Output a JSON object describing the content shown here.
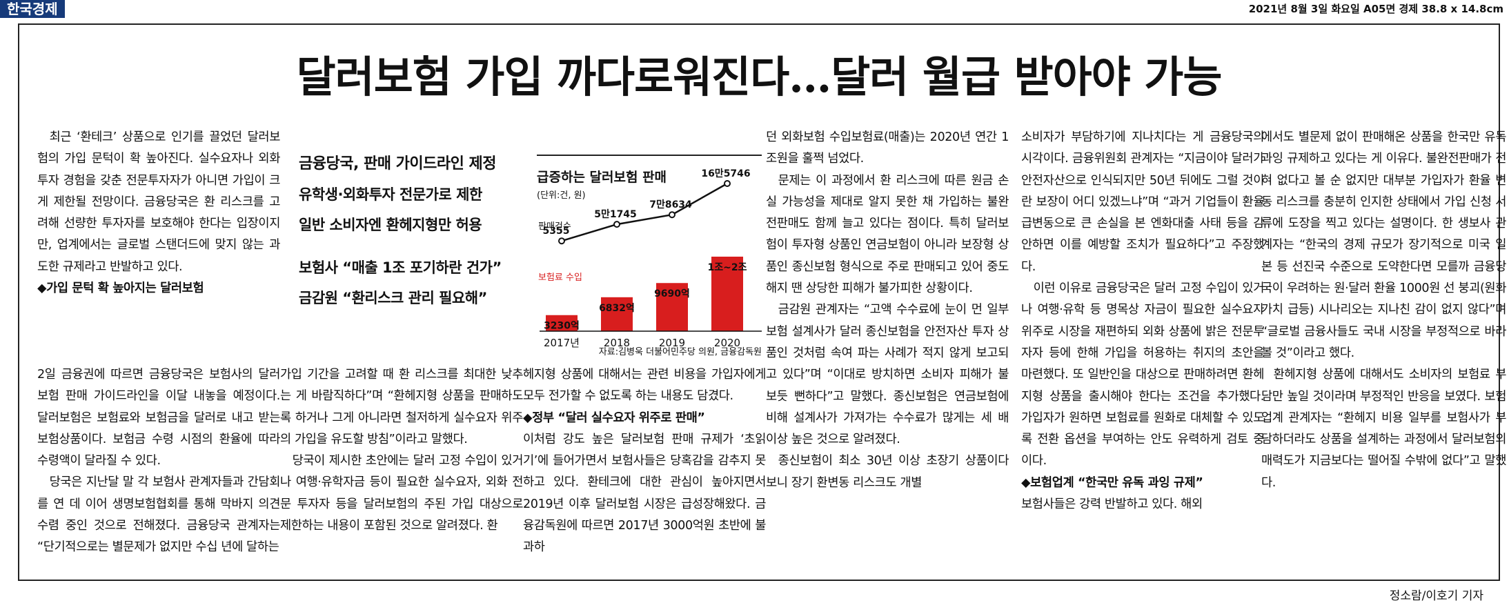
{
  "masthead": {
    "name": "한국경제",
    "dateline": "2021년 8월 3일 화요일 A05면 경제 38.8 x 14.8cm"
  },
  "headline": "달러보험 가입 까다로워진다…달러 월급 받아야 가능",
  "deck": {
    "line1": "금융당국, 판매 가이드라인 제정",
    "line2": "유학생·외화투자 전문가로 제한",
    "line3": "일반 소비자엔 환헤지형만 허용",
    "line4": "보험사 “매출 1조 포기하란 건가”",
    "line5": "금감원 “환리스크 관리 필요해”"
  },
  "article": {
    "col1": [
      "최근 ‘환테크’ 상품으로 인기를 끌었던 달러보험의 가입 문턱이 확 높아진다. 실수요자나 외화 투자 경험을 갖춘 전문투자자가 아니면 가입이 크게 제한될 전망이다. 금융당국은 환 리스크를 고려해 선량한 투자자를 보호해야 한다는 입장이지만, 업계에서는 글로벌 스탠더드에 맞지 않는 과도한 규제라고 반발하고 있다."
    ],
    "sub1": "◆가입 문턱 확 높아지는 달러보험",
    "col1b": [
      "2일 금융권에 따르면 금융당국은 보험사의 달러보험 판매 가이드라인을 이달 내놓을 예정이다. 달러보험은 보험료와 보험금을 달러로 내고 받는 보험상품이다. 보험금 수령 시점의 환율에 따라 수령액이 달라질 수 있다.",
      "당국은 지난달 말 각 보험사 관계자들과 간담회를 연 데 이어 생명보험협회를 통해 막바지 의견 수렴 중인 것으로 전해졌다. 금융당국 관계자는 “단기적으로는 별문제가 없지만 수십 년에 달하는"
    ],
    "col3": [
      "가입 기간을 고려할 때 환 리스크를 최대한 낮추는 게 바람직하다”며 “환헤지형 상품을 판매하도록 하거나 그게 아니라면 철저하게 실수요자 위주의 가입을 유도할 방침”이라고 말했다.",
      "당국이 제시한 초안에는 달러 고정 수입이 있거나 여행·유학자금 등이 필요한 실수요자, 외화 전문 투자자 등을 달러보험의 주된 가입 대상으로 제한하는 내용이 포함된 것으로 알려졌다. 환"
    ],
    "col4a": "헤지형 상품에 대해서는 관련 비용을 가입자에게 모두 전가할 수 없도록 하는 내용도 담겼다.",
    "sub2": "◆정부 “달러 실수요자 위주로 판매”",
    "col4b": "이처럼 강도 높은 달러보험 판매 규제가 ‘초읽기’에 들어가면서 보험사들은 당혹감을 감추지 못하고 있다. 환테크에 대한 관심이 높아지면서 2019년 이후 달러보험 시장은 급성장해왔다. 금융감독원에 따르면 2017년 3000억원 초반에 불과하",
    "col5": [
      "던 외화보험 수입보험료(매출)는 2020년 연간 1조원을 훌쩍 넘었다.",
      "문제는 이 과정에서 환 리스크에 따른 원금 손실 가능성을 제대로 알지 못한 채 가입하는 불완전판매도 함께 늘고 있다는 점이다. 특히 달러보험이 투자형 상품인 연금보험이 아니라 보장형 상품인 종신보험 형식으로 주로 판매되고 있어 중도해지 땐 상당한 피해가 불가피한 상황이다.",
      "금감원 관계자는 “고액 수수료에 눈이 먼 일부 보험 설계사가 달러 종신보험을 안전자산 투자 상품인 것처럼 속여 파는 사례가 적지 않게 보고되고 있다”며 “이대로 방치하면 소비자 피해가 불 보듯 뻔하다”고 말했다. 종신보험은 연금보험에 비해 설계사가 가져가는 수수료가 많게는 세 배 이상 높은 것으로 알려졌다.",
      "종신보험이 최소 30년 이상 초장기 상품이다 보니 장기 환변동 리스크도 개별"
    ],
    "col6a": [
      "소비자가 부담하기에 지나치다는 게 금융당국의 시각이다. 금융위원회 관계자는 “지금이야 달러가 안전자산으로 인식되지만 50년 뒤에도 그럴 것이란 보장이 어디 있겠느냐”며 “과거 기업들이 환율 급변동으로 큰 손실을 본 엔화대출 사태 등을 감안하면 이를 예방할 조치가 필요하다”고 주장했다.",
      "이런 이유로 금융당국은 달러 고정 수입이 있거나 여행·유학 등 명목상 자금이 필요한 실수요자 위주로 시장을 재편하되 외화 상품에 밝은 전문투자자 등에 한해 가입을 허용하는 취지의 초안을 마련했다. 또 일반인을 대상으로 판매하려면 환헤지형 상품을 출시해야 한다는 조건을 추가했다. 가입자가 원하면 보험료를 원화로 대체할 수 있도록 전환 옵션을 부여하는 안도 유력하게 검토 중이다."
    ],
    "sub3": "◆보험업계 “한국만 유독 과잉 규제”",
    "col6b": "보험사들은 강력 반발하고 있다. 해외",
    "col7": [
      "에서도 별문제 없이 판매해온 상품을 한국만 유독 과잉 규제하고 있다는 게 이유다. 불완전판매가 전혀 없다고 볼 순 없지만 대부분 가입자가 환율 변동 리스크를 충분히 인지한 상태에서 가입 신청 서류에 도장을 찍고 있다는 설명이다. 한 생보사 관계자는 “한국의 경제 규모가 장기적으로 미국 일본 등 선진국 수준으로 도약한다면 모를까 금융당국이 우려하는 원·달러 환율 1000원 선 붕괴(원화가치 급등) 시나리오는 지나친 감이 없지 않다”며 “글로벌 금융사들도 국내 시장을 부정적으로 바라볼 것”이라고 했다.",
      "환헤지형 상품에 대해서도 소비자의 보험료 부담만 높일 것이라며 부정적인 반응을 보였다. 보험업계 관계자는 “환헤지 비용 일부를 보험사가 부담하더라도 상품을 설계하는 과정에서 달러보험의 매력도가 지금보다는 떨어질 수밖에 없다”고 말했다."
    ],
    "byline": "정소람/이호기 기자"
  },
  "chart_data": {
    "type": "bar",
    "title": "급증하는 달러보험 판매",
    "unit_note": "(단위:건, 원)",
    "categories": [
      "2017년",
      "2018",
      "2019",
      "2020"
    ],
    "series": [
      {
        "name": "보험료 수입",
        "kind": "bar",
        "color": "#d81e1e",
        "values": [
          3230,
          6832,
          9690,
          15000
        ],
        "labels": [
          "3230억",
          "6832억",
          "9690억",
          "1조~2조"
        ]
      },
      {
        "name": "판매건수",
        "kind": "line",
        "color": "#111111",
        "values": [
          5355,
          51745,
          78634,
          165746
        ],
        "labels": [
          "5355",
          "5만1745",
          "7만8634",
          "16만5746"
        ]
      }
    ],
    "source": "자료:김병욱 더불어민주당 의원, 금융감독원"
  }
}
